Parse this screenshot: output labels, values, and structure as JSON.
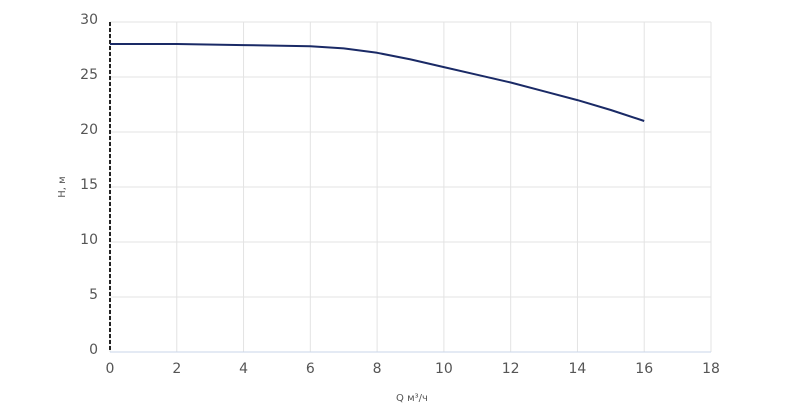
{
  "chart_data": {
    "type": "line",
    "x_label": "Q м³/ч",
    "y_label": "H, м",
    "x": [
      0,
      2,
      4,
      6,
      7,
      8,
      9,
      10,
      11,
      12,
      13,
      14,
      15,
      16
    ],
    "values": [
      28.0,
      28.0,
      27.9,
      27.8,
      27.6,
      27.2,
      26.6,
      25.9,
      25.2,
      24.5,
      23.7,
      22.9,
      22.0,
      21.0
    ],
    "color": "#1a2a66",
    "xlim": [
      0,
      18
    ],
    "ylim": [
      0,
      30
    ],
    "xticks": [
      0,
      2,
      4,
      6,
      8,
      10,
      12,
      14,
      16,
      18
    ],
    "yticks": [
      0,
      5,
      10,
      15,
      20,
      25,
      30
    ],
    "grid": true
  }
}
